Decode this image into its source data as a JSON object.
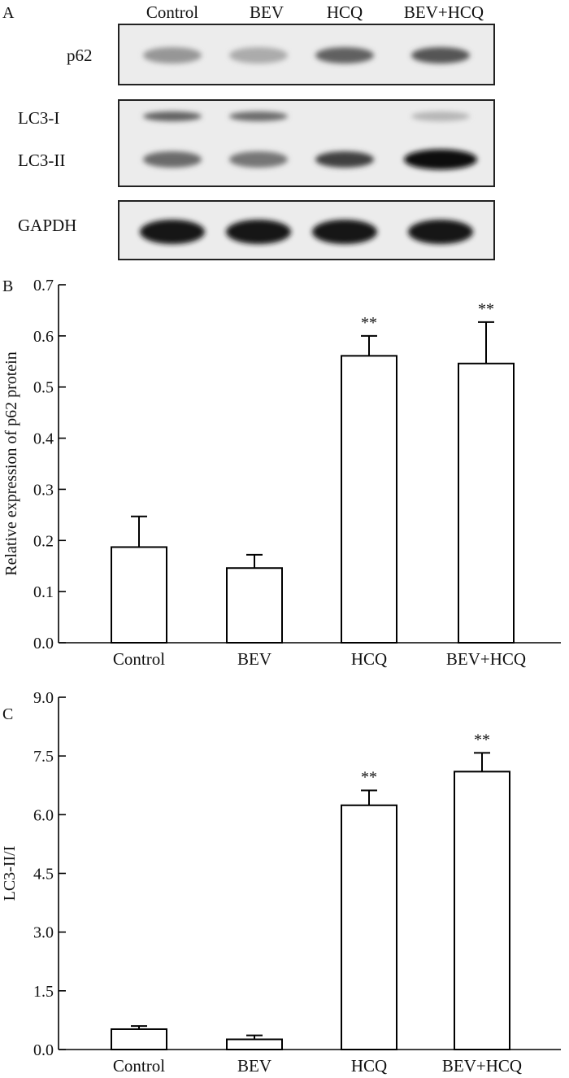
{
  "panels": {
    "a": {
      "letter": "A"
    },
    "b": {
      "letter": "B"
    },
    "c": {
      "letter": "C"
    }
  },
  "blot": {
    "lanes": [
      "Control",
      "BEV",
      "HCQ",
      "BEV+HCQ"
    ],
    "rows": [
      {
        "label": "p62",
        "intensity": [
          0.35,
          0.25,
          0.6,
          0.65
        ]
      },
      {
        "label": "LC3-I",
        "intensity": [
          0.6,
          0.55,
          0.0,
          0.2
        ]
      },
      {
        "label": "LC3-II",
        "intensity": [
          0.55,
          0.5,
          0.75,
          1.0
        ]
      },
      {
        "label": "GAPDH",
        "intensity": [
          0.95,
          0.95,
          0.95,
          0.95
        ]
      }
    ]
  },
  "chart_data": [
    {
      "type": "bar",
      "categories": [
        "Control",
        "BEV",
        "HCQ",
        "BEV+HCQ"
      ],
      "values": [
        0.187,
        0.146,
        0.561,
        0.546
      ],
      "error": [
        0.06,
        0.026,
        0.039,
        0.081
      ],
      "annotations": [
        "",
        "",
        "**",
        "**"
      ],
      "ylabel": "Relative expression of p62 protein",
      "xlabel": "",
      "ylim": [
        0,
        0.7
      ],
      "yticks": [
        "0.0",
        "0.1",
        "0.2",
        "0.3",
        "0.4",
        "0.5",
        "0.6",
        "0.7"
      ],
      "grid": false
    },
    {
      "type": "bar",
      "categories": [
        "Control",
        "BEV",
        "HCQ",
        "BEV+HCQ"
      ],
      "values": [
        0.52,
        0.26,
        6.24,
        7.1
      ],
      "error": [
        0.08,
        0.1,
        0.38,
        0.48
      ],
      "annotations": [
        "",
        "",
        "**",
        "**"
      ],
      "ylabel": "LC3-II/I",
      "xlabel": "",
      "ylim": [
        0,
        9
      ],
      "yticks": [
        "0.0",
        "1.5",
        "3.0",
        "4.5",
        "6.0",
        "7.5",
        "9.0"
      ],
      "grid": false
    }
  ]
}
